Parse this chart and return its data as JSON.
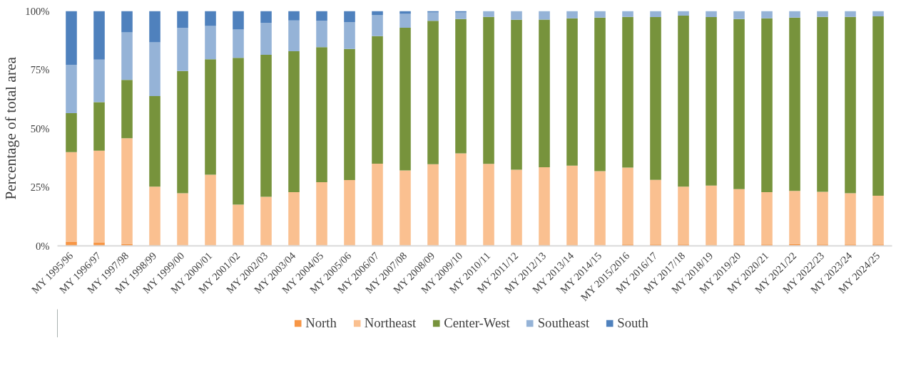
{
  "chart_data": {
    "type": "bar",
    "stacked": true,
    "ylabel": "Percentage of total area",
    "categories": [
      "MY 1995/96",
      "MY 1996/97",
      "MY 1997/98",
      "MY 1998/99",
      "MY 1999/00",
      "MY 2000/01",
      "MY 2001/02",
      "MY 2002/03",
      "MY 2003/04",
      "MY 2004/05",
      "MY 2005/06",
      "MY 2006/07",
      "MY 2007/08",
      "MY 2008/09",
      "MY 2009/10",
      "MY 2010/11",
      "MY 2011/12",
      "MY 2012/13",
      "MY 2013/14",
      "MY 2014/15",
      "MY 2015/2016",
      "MY 2016/17",
      "MY 2017/18",
      "MY 2018/19",
      "MY 2019/20",
      "MY 2020/21",
      "MY 2021/22",
      "MY 2022/23",
      "MY 2023/24",
      "MY 2024/25"
    ],
    "series": [
      {
        "name": "North",
        "color": "#f79646",
        "values": [
          1.8,
          1.5,
          0.9,
          0.4,
          0.1,
          0,
          0,
          0,
          0,
          0,
          0,
          0,
          0,
          0,
          0,
          0,
          0,
          0.4,
          0.4,
          0,
          0.7,
          0.7,
          0.7,
          0.4,
          0.7,
          0.7,
          0.9,
          0.7,
          0.7,
          0.7
        ]
      },
      {
        "name": "Northeast",
        "color": "#fac090",
        "values": [
          38.1,
          39.0,
          44.9,
          24.8,
          22.3,
          30.3,
          17.6,
          20.9,
          22.9,
          27.1,
          28.0,
          35.0,
          32.1,
          34.8,
          39.4,
          34.9,
          32.4,
          33.1,
          33.8,
          31.8,
          32.6,
          27.4,
          24.5,
          25.3,
          23.5,
          22.2,
          22.5,
          22.3,
          21.7,
          20.7
        ]
      },
      {
        "name": "Center-West",
        "color": "#77933c",
        "values": [
          16.6,
          20.7,
          24.9,
          38.6,
          52.1,
          49.2,
          62.5,
          60.5,
          60.0,
          57.5,
          55.9,
          54.3,
          60.8,
          61.0,
          57.2,
          62.6,
          63.9,
          62.9,
          62.7,
          65.4,
          64.2,
          69.3,
          72.8,
          71.7,
          72.4,
          74.0,
          73.8,
          74.5,
          75.1,
          76.3
        ]
      },
      {
        "name": "Southeast",
        "color": "#95b3d7",
        "values": [
          20.6,
          18.1,
          20.2,
          22.9,
          18.3,
          14.1,
          12.0,
          13.6,
          13.1,
          11.2,
          11.3,
          9.0,
          5.9,
          3.6,
          2.8,
          2.5,
          3.7,
          3.6,
          3.1,
          2.8,
          2.5,
          2.6,
          2.0,
          2.6,
          3.4,
          3.1,
          2.8,
          2.5,
          2.5,
          2.3
        ]
      },
      {
        "name": "South",
        "color": "#4f81bd",
        "values": [
          22.9,
          20.7,
          9.1,
          13.3,
          7.2,
          6.4,
          7.9,
          5.0,
          4.0,
          4.2,
          4.8,
          1.7,
          1.2,
          0.6,
          0.6,
          0,
          0,
          0,
          0,
          0,
          0,
          0,
          0,
          0,
          0,
          0,
          0,
          0,
          0,
          0
        ]
      }
    ],
    "ylim": [
      0,
      100
    ],
    "yticks": [
      {
        "value": 0,
        "label": "0%"
      },
      {
        "value": 25,
        "label": "25%"
      },
      {
        "value": 50,
        "label": "50%"
      },
      {
        "value": 75,
        "label": "75%"
      },
      {
        "value": 100,
        "label": "100%"
      }
    ],
    "grid": false,
    "legend": "bottom"
  }
}
